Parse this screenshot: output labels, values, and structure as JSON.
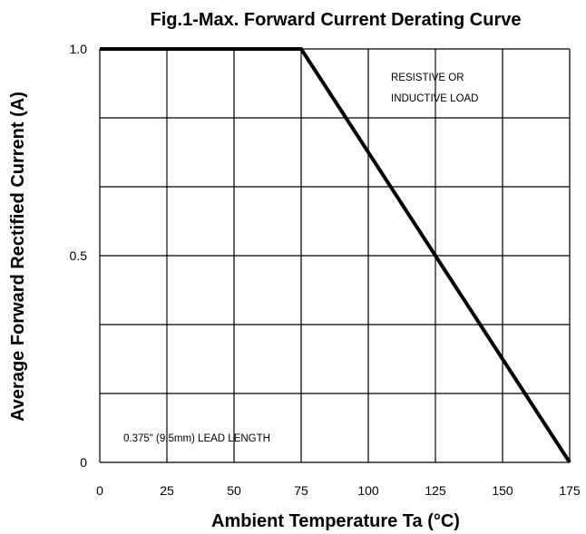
{
  "chart_data": {
    "type": "line",
    "title": "Fig.1-Max. Forward Current Derating Curve",
    "xlabel": "Ambient Temperature Ta (°C)",
    "ylabel": "Average Forward Rectified Current (A)",
    "xlim": [
      0,
      175
    ],
    "ylim": [
      0,
      1.0
    ],
    "x_ticks": [
      0,
      25,
      50,
      75,
      100,
      125,
      150,
      175
    ],
    "x_tick_labels": [
      "0",
      "25",
      "50",
      "75",
      "100",
      "125",
      "150",
      "175"
    ],
    "y_ticks": [
      0,
      0.5,
      1.0
    ],
    "y_tick_labels": [
      "0",
      "0.5",
      "1.0"
    ],
    "grid": true,
    "series": [
      {
        "x": [
          0,
          75,
          175
        ],
        "y": [
          1.0,
          1.0,
          0
        ]
      }
    ],
    "annotations": {
      "load_line1": "RESISTIVE OR",
      "load_line2": "INDUCTIVE LOAD",
      "lead": "0.375\" (9.5mm) LEAD LENGTH"
    },
    "colors": {
      "line": "#000000",
      "grid": "#000000"
    }
  }
}
